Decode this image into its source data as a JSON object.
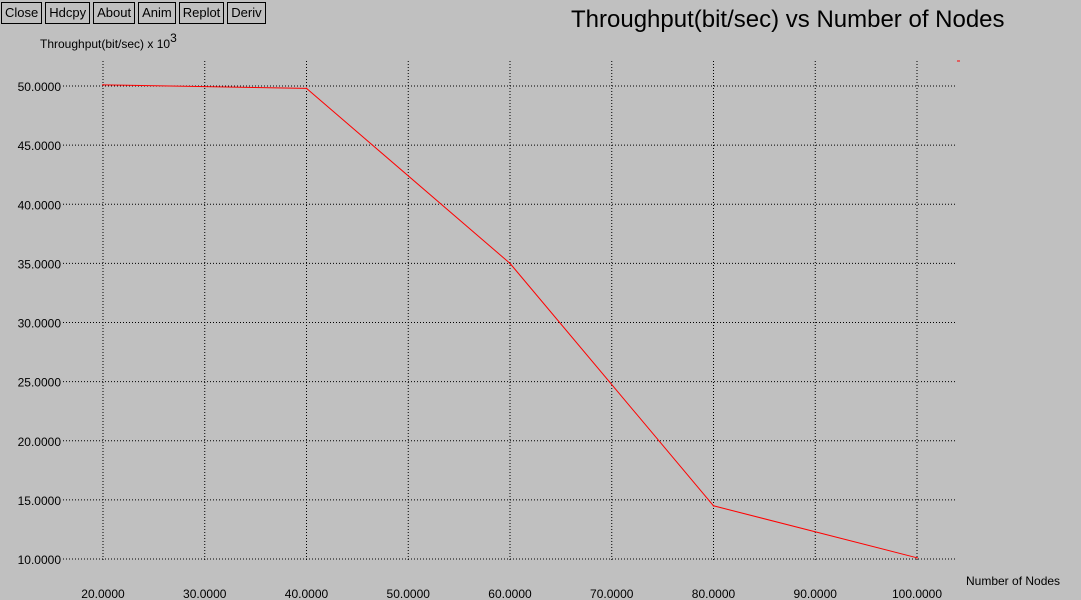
{
  "toolbar": {
    "buttons": [
      "Close",
      "Hdcpy",
      "About",
      "Anim",
      "Replot",
      "Deriv"
    ]
  },
  "chart_data": {
    "type": "line",
    "title": "Throughput(bit/sec) vs Number of Nodes",
    "ylabel_text": "Throughput(bit/sec)  x 10",
    "ylabel_exponent": "3",
    "xlabel": "Number of Nodes",
    "x": [
      20,
      40,
      60,
      80,
      100
    ],
    "series": [
      {
        "values": [
          50.1,
          49.8,
          35.0,
          14.5,
          10.1
        ],
        "color": "#ff0000"
      }
    ],
    "xlim": [
      20,
      100
    ],
    "ylim": [
      10,
      50
    ],
    "x_ticks": [
      "20.0000",
      "30.0000",
      "40.0000",
      "50.0000",
      "60.0000",
      "70.0000",
      "80.0000",
      "90.0000",
      "100.0000"
    ],
    "y_ticks": [
      "50.0000",
      "45.0000",
      "40.0000",
      "35.0000",
      "30.0000",
      "25.0000",
      "20.0000",
      "15.0000",
      "10.0000"
    ],
    "grid": true,
    "grid_style": "dotted"
  },
  "colors": {
    "background": "#c0c0c0",
    "grid": "#000000",
    "line": "#ff0000"
  }
}
